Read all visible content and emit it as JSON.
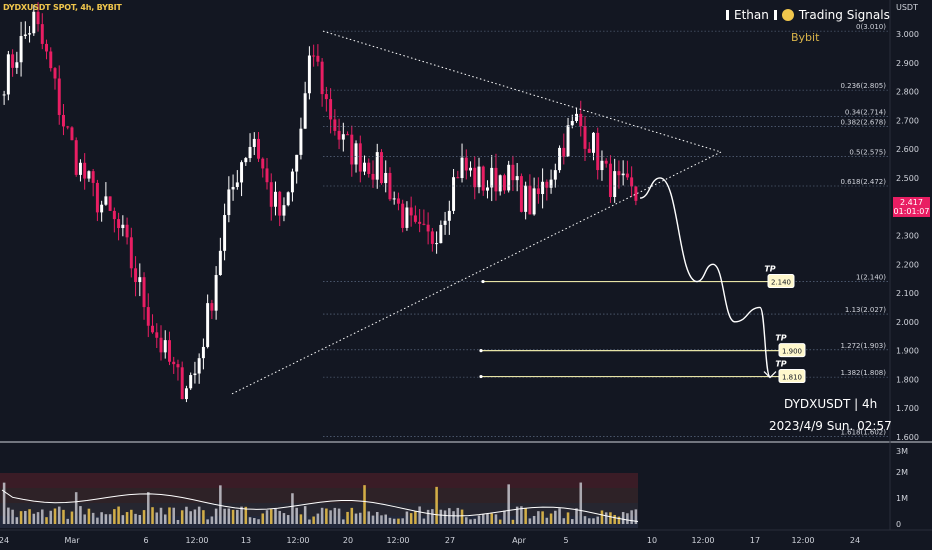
{
  "header": {
    "symbol_line": "DYDXUSDT SPOT, 4h, BYBIT",
    "brand_name": "Ethan",
    "brand_suffix": "Trading Signals",
    "exchange": "Bybit",
    "currency": "USDT"
  },
  "last_price": {
    "price": "2.417",
    "countdown": "01:01:07"
  },
  "watermark": {
    "symbol": "DYDXUSDT | 4h",
    "datetime": "2023/4/9 Sun. 02:57"
  },
  "chart_data": {
    "type": "candlestick",
    "title": "DYDXUSDT SPOT, 4h, BYBIT",
    "ylim": [
      1.6,
      3.1
    ],
    "y_ticks": [
      "3.000",
      "2.900",
      "2.800",
      "2.700",
      "2.600",
      "2.500",
      "2.400",
      "2.300",
      "2.200",
      "2.100",
      "2.000",
      "1.900",
      "1.800",
      "1.700",
      "1.600"
    ],
    "x_ticks": [
      "24",
      "Mar",
      "6",
      "12:00",
      "13",
      "12:00",
      "20",
      "12:00",
      "27",
      "Apr",
      "5",
      "10",
      "12:00",
      "17",
      "12:00",
      "24"
    ],
    "price_path": [
      2.85,
      2.95,
      3.05,
      2.9,
      2.7,
      2.55,
      2.45,
      2.38,
      2.3,
      2.15,
      2.0,
      1.88,
      1.78,
      1.82,
      2.05,
      2.35,
      2.55,
      2.65,
      2.45,
      2.35,
      2.6,
      2.95,
      2.75,
      2.62,
      2.58,
      2.55,
      2.5,
      2.38,
      2.3,
      2.28,
      2.4,
      2.55,
      2.5,
      2.48,
      2.52,
      2.45,
      2.4,
      2.5,
      2.62,
      2.7,
      2.62,
      2.5,
      2.46,
      2.43
    ],
    "fib_levels": [
      {
        "label": "0(3.010)",
        "value": 3.01
      },
      {
        "label": "0.236(2.805)",
        "value": 2.805
      },
      {
        "label": "0.34(2.714)",
        "value": 2.714
      },
      {
        "label": "0.382(2.678)",
        "value": 2.678
      },
      {
        "label": "0.5(2.575)",
        "value": 2.575
      },
      {
        "label": "0.618(2.472)",
        "value": 2.472
      },
      {
        "label": "1(2.140)",
        "value": 2.14
      },
      {
        "label": "1.13(2.027)",
        "value": 2.027
      },
      {
        "label": "1.272(1.903)",
        "value": 1.903
      },
      {
        "label": "1.382(1.808)",
        "value": 1.808
      },
      {
        "label": "1.618(1.602)",
        "value": 1.602
      }
    ],
    "take_profits": [
      {
        "label": "TP",
        "value": "2.140",
        "price": 2.14
      },
      {
        "label": "TP",
        "value": "1.900",
        "price": 1.9
      },
      {
        "label": "TP",
        "value": "1.810",
        "price": 1.81
      }
    ],
    "triangle": {
      "apex_price": 3.01,
      "low_price": 1.75,
      "tip_price": 2.59
    },
    "projection_path": [
      2.43,
      2.5,
      2.14,
      2.2,
      2.0,
      2.05,
      1.81
    ],
    "volume": {
      "ylim": [
        0,
        3
      ],
      "y_ticks": [
        "3M",
        "2M",
        "1M",
        "0"
      ]
    }
  }
}
